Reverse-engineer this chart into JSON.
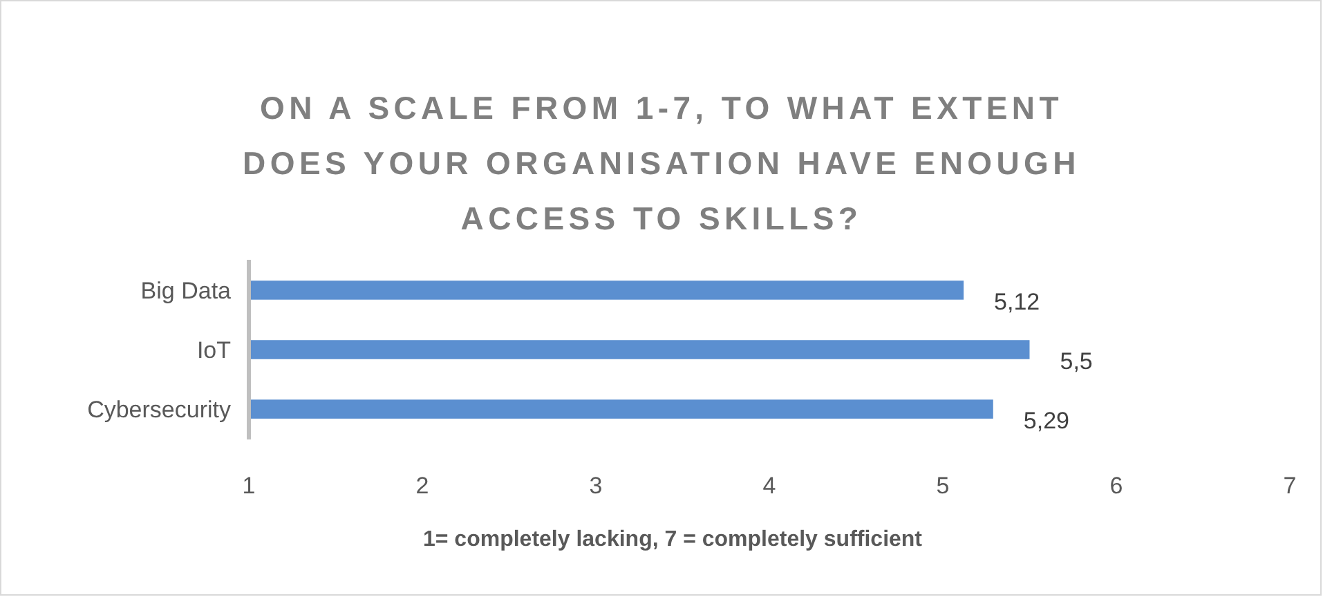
{
  "chart_data": {
    "type": "bar",
    "orientation": "horizontal",
    "title": "ON A SCALE FROM 1-7, TO WHAT EXTENT DOES YOUR ORGANISATION HAVE ENOUGH ACCESS TO SKILLS?",
    "xlabel": "1= completely lacking, 7 = completely sufficient",
    "categories": [
      "Big Data",
      "IoT",
      "Cybersecurity"
    ],
    "values": [
      5.12,
      5.5,
      5.29
    ],
    "value_labels": [
      "5,12",
      "5,5",
      "5,29"
    ],
    "color": "#5b8fd0",
    "xlim": [
      1,
      7
    ],
    "xticks": [
      1,
      2,
      3,
      4,
      5,
      6,
      7
    ],
    "grid": false
  }
}
